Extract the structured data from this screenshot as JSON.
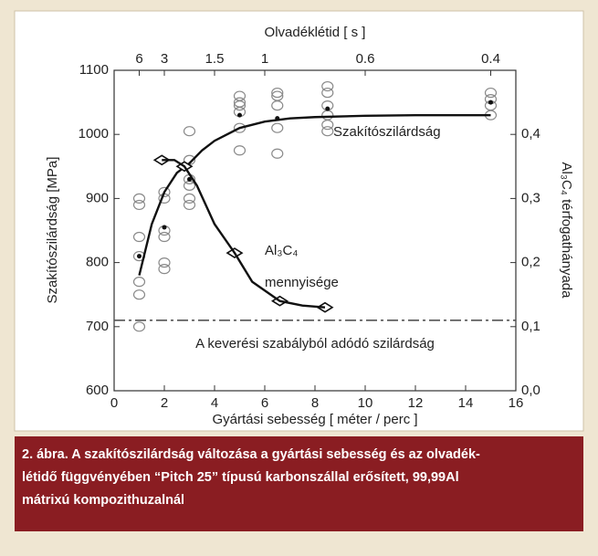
{
  "chart_data": {
    "type": "scatter",
    "xlabel": "Gyártási sebesség [ méter / perc ]",
    "ylabel": "Szakítószilárdság [MPa]",
    "y2label": "Al₃C₄ térfogathányada",
    "x2label": "Olvadéklétid [ s ]",
    "xlim": [
      0,
      16
    ],
    "xticks": [
      0,
      2,
      4,
      6,
      8,
      10,
      12,
      14,
      16
    ],
    "ylim": [
      600,
      1100
    ],
    "yticks": [
      600,
      700,
      800,
      900,
      1000,
      1100
    ],
    "y2lim": [
      0,
      0.5
    ],
    "y2ticks": [
      {
        "value": 0,
        "label": "0,0"
      },
      {
        "value": 0.1,
        "label": "0,1"
      },
      {
        "value": 0.2,
        "label": "0,2"
      },
      {
        "value": 0.3,
        "label": "0,3"
      },
      {
        "value": 0.4,
        "label": "0,4"
      }
    ],
    "x2scale": "reciprocal",
    "x2lim": [
      null,
      0.375
    ],
    "x2ticks": [
      6,
      3,
      1.5,
      1,
      0.6,
      0.4
    ],
    "series": [
      {
        "marker": "open-circle",
        "color": "#8a8a8a",
        "x": [
          1,
          1,
          1,
          1,
          1,
          1,
          1,
          2,
          2,
          2,
          2,
          2,
          2,
          3,
          3,
          3,
          3,
          3,
          3,
          5,
          5,
          5,
          5,
          5,
          5,
          6.5,
          6.5,
          6.5,
          6.5,
          6.5,
          8.5,
          8.5,
          8.5,
          8.5,
          8.5,
          8.5,
          15,
          15,
          15,
          15
        ],
        "values": [
          700,
          750,
          770,
          810,
          840,
          890,
          900,
          790,
          800,
          840,
          850,
          900,
          910,
          890,
          900,
          920,
          930,
          960,
          1005,
          975,
          1010,
          1035,
          1045,
          1050,
          1060,
          970,
          1010,
          1045,
          1060,
          1065,
          1005,
          1015,
          1030,
          1045,
          1065,
          1075,
          1030,
          1045,
          1055,
          1065
        ]
      },
      {
        "marker": "dot",
        "color": "#111111",
        "x": [
          1,
          2,
          3,
          5,
          6.5,
          8.5,
          15
        ],
        "values": [
          810,
          855,
          930,
          1030,
          1025,
          1040,
          1050
        ]
      },
      {
        "line": "solid",
        "color": "#111111",
        "x": [
          1,
          1.5,
          2,
          2.5,
          3,
          3.5,
          4,
          5,
          6,
          7,
          8,
          10,
          12,
          15
        ],
        "values": [
          780,
          860,
          910,
          940,
          955,
          975,
          990,
          1010,
          1020,
          1025,
          1027,
          1029,
          1030,
          1030
        ]
      },
      {
        "marker": "diamond",
        "color": "#111111",
        "axis": "y2",
        "x": [
          1.9,
          2.8,
          4.8,
          6.6,
          8.4
        ],
        "values": [
          0.36,
          0.35,
          0.215,
          0.14,
          0.13
        ]
      },
      {
        "line": "solid",
        "color": "#111111",
        "axis": "y2",
        "x": [
          1.9,
          2.4,
          2.8,
          3.3,
          4,
          4.8,
          5.5,
          6.6,
          7.5,
          8.4
        ],
        "values": [
          0.36,
          0.36,
          0.35,
          0.32,
          0.26,
          0.215,
          0.17,
          0.14,
          0.133,
          0.13
        ]
      },
      {
        "line": "dashdot",
        "color": "#555555",
        "x": [
          0,
          16
        ],
        "values": [
          710,
          710
        ]
      }
    ],
    "annotations": [
      "Szakítószilárdság",
      "Al₃C₄",
      "mennyisége",
      "A keverési szabályból adódó szilárdság"
    ]
  },
  "caption": [
    "2. ábra. A szakítószilárdság változása a gyártási sebesség és az olvadék-",
    "létidő függvényében “Pitch 25” típusú karbonszállal erősített, 99,99Al",
    "mátrixú kompozithuzalnál"
  ]
}
